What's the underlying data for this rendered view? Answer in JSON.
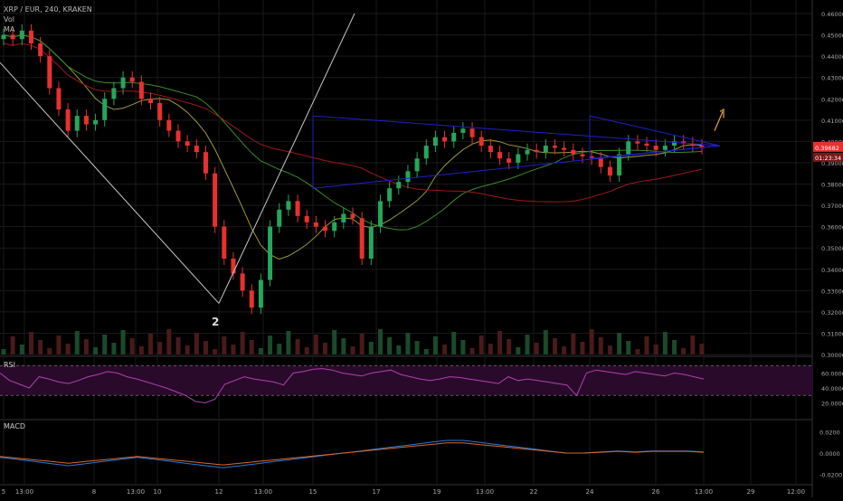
{
  "header": {
    "symbol": "XRP / EUR, 240, KRAKEN",
    "study_vol": "Vol",
    "study_ma": "MA"
  },
  "colors": {
    "background": "#000000",
    "grid": "#1a1a1a",
    "candle_up": "#26a65b",
    "candle_down": "#e8312f",
    "ma_fast": "#9a9a3a",
    "ma_slow_green": "#3a8a2a",
    "ma_slow_red": "#a01818",
    "triangle": "#2020c8",
    "wedge": "#c8c8c8",
    "rsi_line": "#b040b0",
    "rsi_band": "#2a0a2a",
    "macd_line": "#2a7ad8",
    "signal_line": "#d86a2a",
    "arrow": "#f0a040",
    "price_tag": "#e8312f"
  },
  "price_axis": {
    "ticks": [
      "0.46000",
      "0.45000",
      "0.44000",
      "0.43000",
      "0.42000",
      "0.41000",
      "0.40000",
      "0.39000",
      "0.38000",
      "0.37000",
      "0.36000",
      "0.35000",
      "0.34000",
      "0.33000",
      "0.32000",
      "0.31000",
      "0.30000"
    ],
    "last_price": "0.39682",
    "countdown": "01:23:34"
  },
  "rsi_axis": {
    "label": "RSI",
    "ticks": [
      "60.0000",
      "40.0000",
      "20.0000"
    ]
  },
  "macd_axis": {
    "label": "MACD",
    "ticks": [
      "0.0200",
      "0.0000",
      "-0.0200"
    ]
  },
  "time_axis": {
    "ticks": [
      "5",
      "13:00",
      "8",
      "13:00",
      "10",
      "12",
      "13:00",
      "15",
      "17",
      "19",
      "13:00",
      "22",
      "24",
      "26",
      "13:00",
      "29",
      "12:00"
    ]
  },
  "annotation": {
    "wave_label": "2"
  },
  "chart_data": {
    "type": "candlestick",
    "pair": "XRP / EUR",
    "interval": "240",
    "exchange": "KRAKEN",
    "y_range": [
      0.3,
      0.46
    ],
    "close_path": [
      0.45,
      0.448,
      0.452,
      0.446,
      0.44,
      0.425,
      0.415,
      0.405,
      0.412,
      0.408,
      0.41,
      0.42,
      0.425,
      0.43,
      0.428,
      0.42,
      0.418,
      0.41,
      0.405,
      0.4,
      0.398,
      0.395,
      0.385,
      0.36,
      0.345,
      0.338,
      0.33,
      0.322,
      0.335,
      0.36,
      0.368,
      0.372,
      0.365,
      0.362,
      0.36,
      0.358,
      0.362,
      0.366,
      0.364,
      0.345,
      0.36,
      0.372,
      0.378,
      0.381,
      0.386,
      0.392,
      0.398,
      0.402,
      0.4,
      0.404,
      0.406,
      0.402,
      0.398,
      0.395,
      0.392,
      0.39,
      0.394,
      0.396,
      0.395,
      0.398,
      0.397,
      0.396,
      0.394,
      0.393,
      0.392,
      0.388,
      0.384,
      0.394,
      0.4,
      0.399,
      0.398,
      0.396,
      0.398,
      0.4,
      0.399,
      0.398,
      0.397
    ]
  }
}
